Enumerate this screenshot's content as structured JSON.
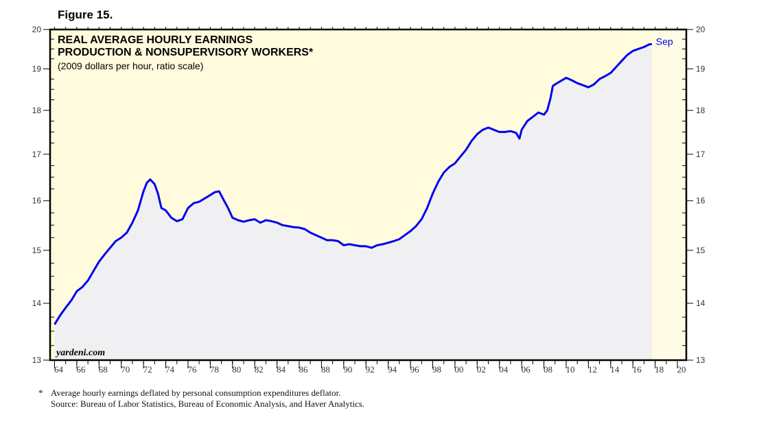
{
  "figure_label": "Figure 15.",
  "footnote": {
    "marker": "*",
    "note": "Average hourly earnings deflated by personal consumption expenditures deflator.",
    "source": "Source: Bureau of Labor Statistics, Bureau of Economic Analysis, and Haver Analytics."
  },
  "colors": {
    "plot_background": "#fffbdc",
    "area_fill": "#f0f0f2",
    "line": "#0000ee",
    "frame": "#000000"
  },
  "chart_data": {
    "type": "line",
    "title": "REAL AVERAGE HOURLY EARNINGS",
    "subtitle": "PRODUCTION & NONSUPERVISORY WORKERS*",
    "note": "(2009 dollars per hour, ratio scale)",
    "watermark": "yardeni.com",
    "end_label": "Sep",
    "yscale": "log",
    "ylim": [
      13,
      20
    ],
    "xlim": [
      1963.6,
      2020.8
    ],
    "y_ticks": [
      13,
      14,
      15,
      16,
      17,
      18,
      19,
      20
    ],
    "y_tick_labels": [
      "13",
      "14",
      "15",
      "16",
      "17",
      "18",
      "19",
      "20"
    ],
    "x_ticks": [
      1964,
      1966,
      1968,
      1970,
      1972,
      1974,
      1976,
      1978,
      1980,
      1982,
      1984,
      1986,
      1988,
      1990,
      1992,
      1994,
      1996,
      1998,
      2000,
      2002,
      2004,
      2006,
      2008,
      2010,
      2012,
      2014,
      2016,
      2018,
      2020
    ],
    "x_tick_labels": [
      "64",
      "66",
      "68",
      "70",
      "72",
      "74",
      "76",
      "78",
      "80",
      "82",
      "84",
      "86",
      "88",
      "90",
      "92",
      "94",
      "96",
      "98",
      "00",
      "02",
      "04",
      "06",
      "08",
      "10",
      "12",
      "14",
      "16",
      "18",
      "20"
    ],
    "series": [
      {
        "name": "Real average hourly earnings",
        "x": [
          1964.0,
          1964.5,
          1965.0,
          1965.5,
          1966.0,
          1966.5,
          1967.0,
          1967.5,
          1968.0,
          1968.5,
          1969.0,
          1969.5,
          1970.0,
          1970.5,
          1971.0,
          1971.5,
          1972.0,
          1972.3,
          1972.6,
          1973.0,
          1973.3,
          1973.6,
          1974.0,
          1974.5,
          1975.0,
          1975.5,
          1976.0,
          1976.5,
          1977.0,
          1977.5,
          1978.0,
          1978.4,
          1978.8,
          1979.2,
          1979.6,
          1980.0,
          1980.5,
          1981.0,
          1981.5,
          1982.0,
          1982.5,
          1983.0,
          1983.5,
          1984.0,
          1984.5,
          1985.0,
          1985.5,
          1986.0,
          1986.5,
          1987.0,
          1987.5,
          1988.0,
          1988.5,
          1989.0,
          1989.5,
          1990.0,
          1990.5,
          1991.0,
          1991.5,
          1992.0,
          1992.5,
          1993.0,
          1993.5,
          1994.0,
          1994.5,
          1995.0,
          1995.5,
          1996.0,
          1996.5,
          1997.0,
          1997.5,
          1998.0,
          1998.5,
          1999.0,
          1999.5,
          2000.0,
          2000.5,
          2001.0,
          2001.5,
          2002.0,
          2002.5,
          2003.0,
          2003.5,
          2004.0,
          2004.5,
          2005.0,
          2005.5,
          2005.8,
          2006.0,
          2006.5,
          2007.0,
          2007.5,
          2008.0,
          2008.3,
          2008.6,
          2008.8,
          2009.0,
          2009.5,
          2010.0,
          2010.5,
          2011.0,
          2011.5,
          2012.0,
          2012.5,
          2013.0,
          2013.5,
          2014.0,
          2014.5,
          2015.0,
          2015.5,
          2016.0,
          2016.5,
          2017.0,
          2017.5,
          2017.7
        ],
        "values": [
          13.62,
          13.78,
          13.92,
          14.05,
          14.22,
          14.3,
          14.42,
          14.6,
          14.78,
          14.92,
          15.05,
          15.18,
          15.25,
          15.35,
          15.55,
          15.8,
          16.2,
          16.38,
          16.45,
          16.35,
          16.15,
          15.85,
          15.8,
          15.65,
          15.58,
          15.62,
          15.85,
          15.95,
          15.98,
          16.05,
          16.12,
          16.18,
          16.2,
          16.02,
          15.85,
          15.65,
          15.6,
          15.57,
          15.6,
          15.62,
          15.55,
          15.6,
          15.58,
          15.55,
          15.5,
          15.48,
          15.46,
          15.45,
          15.42,
          15.35,
          15.3,
          15.25,
          15.2,
          15.2,
          15.18,
          15.1,
          15.12,
          15.1,
          15.08,
          15.08,
          15.05,
          15.1,
          15.12,
          15.15,
          15.18,
          15.22,
          15.3,
          15.38,
          15.48,
          15.62,
          15.85,
          16.15,
          16.4,
          16.6,
          16.72,
          16.8,
          16.95,
          17.1,
          17.3,
          17.45,
          17.55,
          17.6,
          17.55,
          17.5,
          17.5,
          17.52,
          17.48,
          17.35,
          17.55,
          17.75,
          17.85,
          17.95,
          17.9,
          18.0,
          18.3,
          18.58,
          18.62,
          18.7,
          18.78,
          18.72,
          18.65,
          18.6,
          18.55,
          18.62,
          18.75,
          18.82,
          18.9,
          19.05,
          19.2,
          19.35,
          19.45,
          19.5,
          19.55,
          19.62,
          19.62
        ]
      }
    ]
  }
}
